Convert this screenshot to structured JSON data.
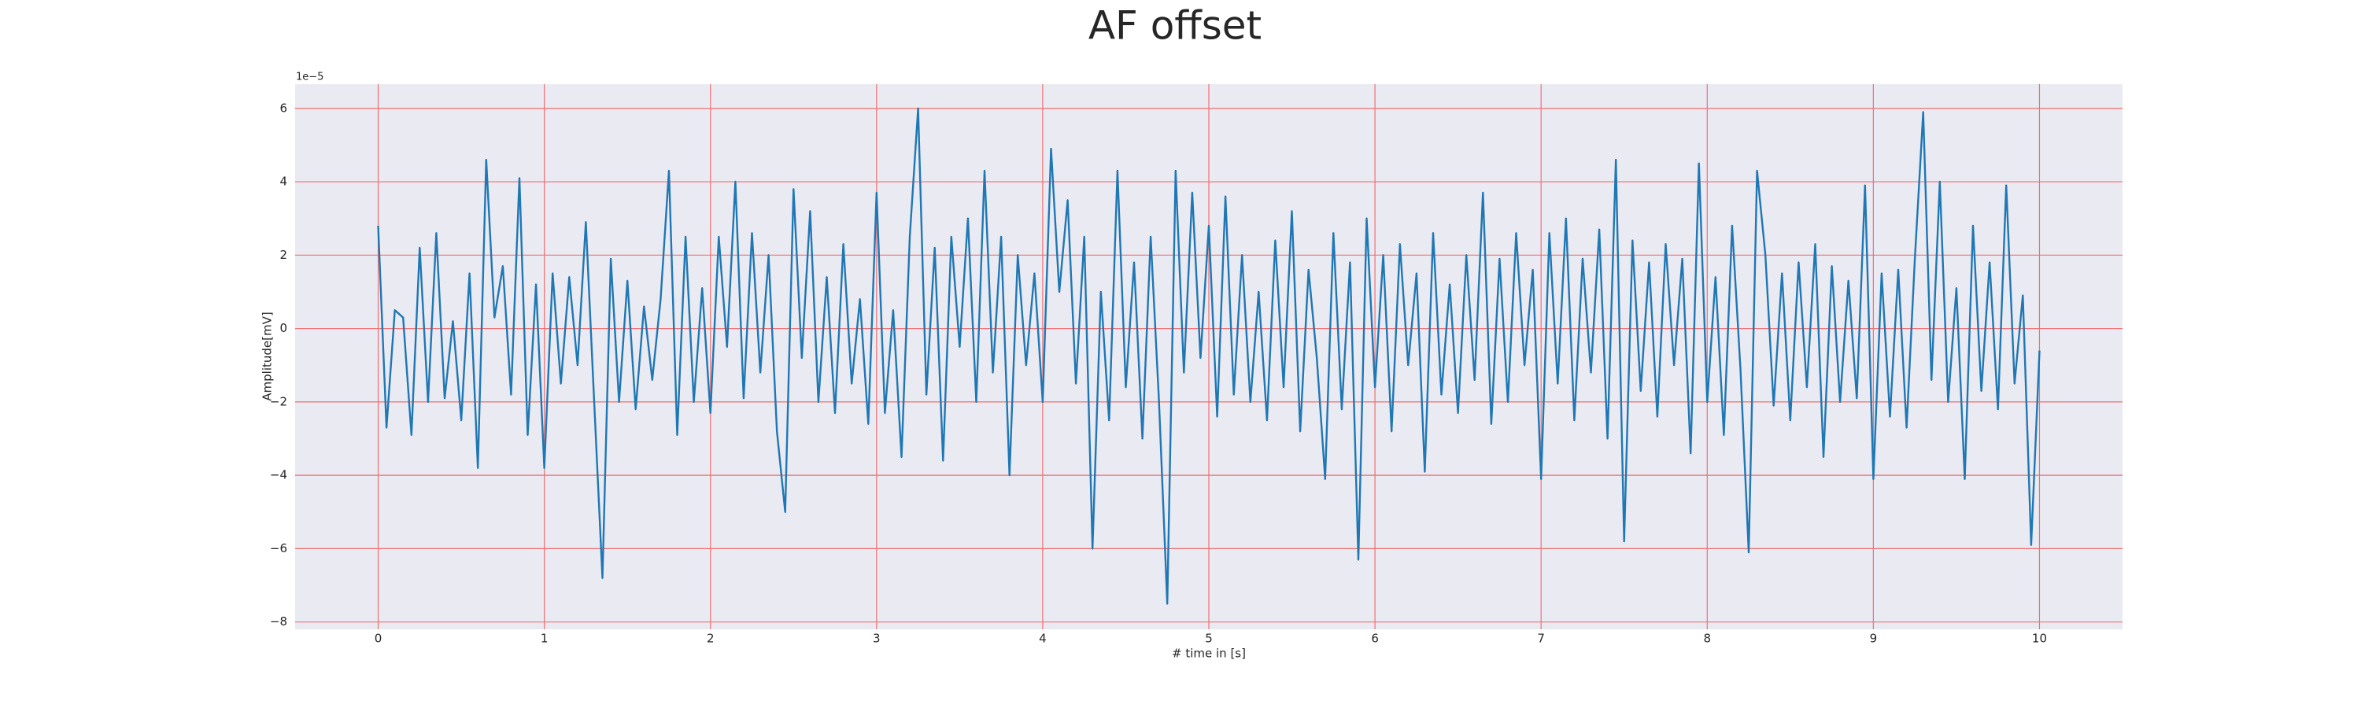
{
  "chart_data": {
    "type": "line",
    "title": "AF offset",
    "xlabel": "# time in [s]",
    "ylabel": "Amplitude[mV]",
    "y_offset_label": "1e−5",
    "x": [
      0,
      0.05,
      0.1,
      0.15,
      0.2,
      0.25,
      0.3,
      0.35,
      0.4,
      0.45,
      0.5,
      0.55,
      0.6,
      0.65,
      0.7,
      0.75,
      0.8,
      0.85,
      0.9,
      0.95,
      1,
      1.05,
      1.1,
      1.15,
      1.2,
      1.25,
      1.3,
      1.35,
      1.4,
      1.45,
      1.5,
      1.55,
      1.6,
      1.65,
      1.7,
      1.75,
      1.8,
      1.85,
      1.9,
      1.95,
      2,
      2.05,
      2.1,
      2.15,
      2.2,
      2.25,
      2.3,
      2.35,
      2.4,
      2.45,
      2.5,
      2.55,
      2.6,
      2.65,
      2.7,
      2.75,
      2.8,
      2.85,
      2.9,
      2.95,
      3,
      3.05,
      3.1,
      3.15,
      3.2,
      3.25,
      3.3,
      3.35,
      3.4,
      3.45,
      3.5,
      3.55,
      3.6,
      3.65,
      3.7,
      3.75,
      3.8,
      3.85,
      3.9,
      3.95,
      4,
      4.05,
      4.1,
      4.15,
      4.2,
      4.25,
      4.3,
      4.35,
      4.4,
      4.45,
      4.5,
      4.55,
      4.6,
      4.65,
      4.7,
      4.75,
      4.8,
      4.85,
      4.9,
      4.95,
      5,
      5.05,
      5.1,
      5.15,
      5.2,
      5.25,
      5.3,
      5.35,
      5.4,
      5.45,
      5.5,
      5.55,
      5.6,
      5.65,
      5.7,
      5.75,
      5.8,
      5.85,
      5.9,
      5.95,
      6,
      6.05,
      6.1,
      6.15,
      6.2,
      6.25,
      6.3,
      6.35,
      6.4,
      6.45,
      6.5,
      6.55,
      6.6,
      6.65,
      6.7,
      6.75,
      6.8,
      6.85,
      6.9,
      6.95,
      7,
      7.05,
      7.1,
      7.15,
      7.2,
      7.25,
      7.3,
      7.35,
      7.4,
      7.45,
      7.5,
      7.55,
      7.6,
      7.65,
      7.7,
      7.75,
      7.8,
      7.85,
      7.9,
      7.95,
      8,
      8.05,
      8.1,
      8.15,
      8.2,
      8.25,
      8.3,
      8.35,
      8.4,
      8.45,
      8.5,
      8.55,
      8.6,
      8.65,
      8.7,
      8.75,
      8.8,
      8.85,
      8.9,
      8.95,
      9,
      9.05,
      9.1,
      9.15,
      9.2,
      9.25,
      9.3,
      9.35,
      9.4,
      9.45,
      9.5,
      9.55,
      9.6,
      9.65,
      9.7,
      9.75,
      9.8,
      9.85,
      9.9,
      9.95,
      10
    ],
    "series": [
      {
        "name": "AF offset",
        "color": "#1f77b4",
        "values": [
          2.8,
          -2.7,
          0.5,
          0.3,
          -2.9,
          2.2,
          -2.0,
          2.6,
          -1.9,
          0.2,
          -2.5,
          1.5,
          -3.8,
          4.6,
          0.3,
          1.7,
          -1.8,
          4.1,
          -2.9,
          1.2,
          -3.8,
          1.5,
          -1.5,
          1.4,
          -1.0,
          2.9,
          -2.0,
          -6.8,
          1.9,
          -2.0,
          1.3,
          -2.2,
          0.6,
          -1.4,
          0.8,
          4.3,
          -2.9,
          2.5,
          -2.0,
          1.1,
          -2.3,
          2.5,
          -0.5,
          4.0,
          -1.9,
          2.6,
          -1.2,
          2.0,
          -2.8,
          -5.0,
          3.8,
          -0.8,
          3.2,
          -2.0,
          1.4,
          -2.3,
          2.3,
          -1.5,
          0.8,
          -2.6,
          3.7,
          -2.3,
          0.5,
          -3.5,
          2.5,
          6.0,
          -1.8,
          2.2,
          -3.6,
          2.5,
          -0.5,
          3.0,
          -2.0,
          4.3,
          -1.2,
          2.5,
          -4.0,
          2.0,
          -1.0,
          1.5,
          -2.0,
          4.9,
          1.0,
          3.5,
          -1.5,
          2.5,
          -6.0,
          1.0,
          -2.5,
          4.3,
          -1.6,
          1.8,
          -3.0,
          2.5,
          -2.0,
          -7.5,
          4.3,
          -1.2,
          3.7,
          -0.8,
          2.8,
          -2.4,
          3.6,
          -1.8,
          2.0,
          -2.0,
          1.0,
          -2.5,
          2.4,
          -1.6,
          3.2,
          -2.8,
          1.6,
          -0.8,
          -4.1,
          2.6,
          -2.2,
          1.8,
          -6.3,
          3.0,
          -1.6,
          2.0,
          -2.8,
          2.3,
          -1.0,
          1.5,
          -3.9,
          2.6,
          -1.8,
          1.2,
          -2.3,
          2.0,
          -1.4,
          3.7,
          -2.6,
          1.9,
          -2.0,
          2.6,
          -1.0,
          1.6,
          -4.1,
          2.6,
          -1.5,
          3.0,
          -2.5,
          1.9,
          -1.2,
          2.7,
          -3.0,
          4.6,
          -5.8,
          2.4,
          -1.7,
          1.8,
          -2.4,
          2.3,
          -1.0,
          1.9,
          -3.4,
          4.5,
          -2.0,
          1.4,
          -2.9,
          2.8,
          -1.1,
          -6.1,
          4.3,
          2.0,
          -2.1,
          1.5,
          -2.5,
          1.8,
          -1.6,
          2.3,
          -3.5,
          1.7,
          -2.0,
          1.3,
          -1.9,
          3.9,
          -4.1,
          1.5,
          -2.4,
          1.6,
          -2.7,
          1.9,
          5.9,
          -1.4,
          4.0,
          -2.0,
          1.1,
          -4.1,
          2.8,
          -1.7,
          1.8,
          -2.2,
          3.9,
          -1.5,
          0.9,
          -5.9,
          -0.6
        ]
      }
    ],
    "xlim": [
      -0.5,
      10.5
    ],
    "xticks": [
      0,
      1,
      2,
      3,
      4,
      5,
      6,
      7,
      8,
      9,
      10
    ],
    "ylim": [
      -8.2,
      6.66
    ],
    "yticks": [
      {
        "value": -8,
        "label": "−8"
      },
      {
        "value": -6,
        "label": "−6"
      },
      {
        "value": -4,
        "label": "−4"
      },
      {
        "value": -2,
        "label": "−2"
      },
      0,
      2,
      4,
      6
    ],
    "grid": true,
    "grid_color": "#f07070",
    "background": "#eaeaf2"
  }
}
